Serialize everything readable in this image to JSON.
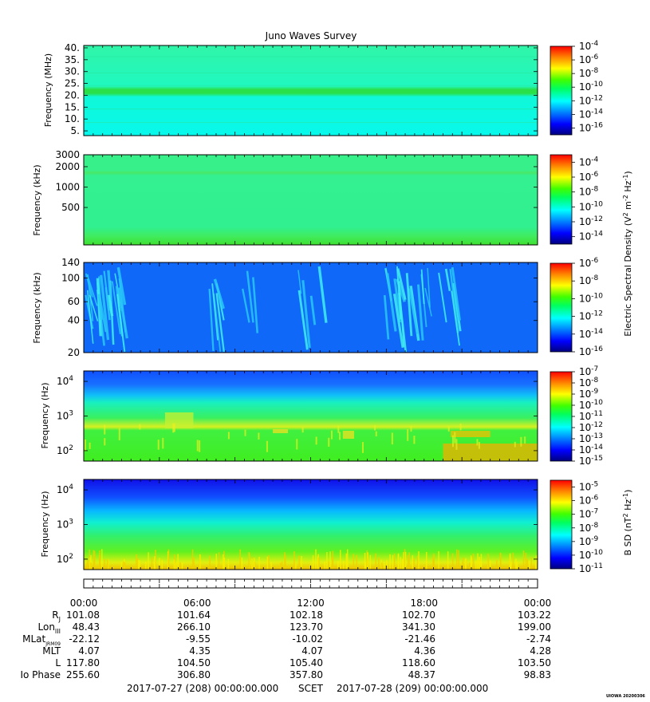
{
  "title": "Juno Waves Survey",
  "watermark": "UIOWA 20200306",
  "panels": [
    {
      "ylabel": "Frequency (MHz)",
      "ticks": [
        {
          "v": 40,
          "label": "40."
        },
        {
          "v": 35,
          "label": "35."
        },
        {
          "v": 30,
          "label": "30."
        },
        {
          "v": 25,
          "label": "25."
        },
        {
          "v": 20,
          "label": "20."
        },
        {
          "v": 15,
          "label": "15."
        },
        {
          "v": 10,
          "label": "10."
        },
        {
          "v": 5,
          "label": "5."
        }
      ],
      "yscale": "linear",
      "ylim": [
        3,
        41
      ],
      "colorbar": {
        "min_exp": -17,
        "max_exp": -4,
        "labels": [
          "-4",
          "-6",
          "-8",
          "-10",
          "-12",
          "-14",
          "-16"
        ]
      }
    },
    {
      "ylabel": "Frequency (kHz)",
      "ticks": [
        {
          "v": 3000,
          "label": "3000"
        },
        {
          "v": 2000,
          "label": "2000"
        },
        {
          "v": 1000,
          "label": "1000"
        },
        {
          "v": 500,
          "label": "500"
        }
      ],
      "yscale": "log",
      "ylim": [
        140,
        3000
      ],
      "colorbar": {
        "min_exp": -15,
        "max_exp": -3,
        "labels": [
          "-4",
          "-6",
          "-8",
          "-10",
          "-12",
          "-14"
        ]
      }
    },
    {
      "ylabel": "Frequency (kHz)",
      "ticks": [
        {
          "v": 140,
          "label": "140"
        },
        {
          "v": 100,
          "label": "100"
        },
        {
          "v": 60,
          "label": "60"
        },
        {
          "v": 40,
          "label": "40"
        },
        {
          "v": 20,
          "label": "20"
        }
      ],
      "yscale": "log",
      "ylim": [
        20,
        140
      ],
      "colorbar": {
        "min_exp": -16,
        "max_exp": -6,
        "labels": [
          "-6",
          "-8",
          "-10",
          "-12",
          "-14",
          "-16"
        ]
      }
    },
    {
      "ylabel": "Frequency (Hz)",
      "ticks": [
        {
          "v": 10000,
          "label": "10",
          "exp": "4"
        },
        {
          "v": 1000,
          "label": "10",
          "exp": "3"
        },
        {
          "v": 100,
          "label": "10",
          "exp": "2"
        }
      ],
      "yscale": "log",
      "ylim": [
        50,
        20000
      ],
      "colorbar": {
        "min_exp": -15,
        "max_exp": -7,
        "labels": [
          "-7",
          "-8",
          "-9",
          "-10",
          "-11",
          "-12",
          "-13",
          "-14",
          "-15"
        ]
      }
    },
    {
      "ylabel": "Frequency (Hz)",
      "ticks": [
        {
          "v": 10000,
          "label": "10",
          "exp": "4"
        },
        {
          "v": 1000,
          "label": "10",
          "exp": "3"
        },
        {
          "v": 100,
          "label": "10",
          "exp": "2"
        }
      ],
      "yscale": "log",
      "ylim": [
        50,
        20000
      ],
      "colorbar": {
        "min_exp": -11,
        "max_exp": -4.5,
        "labels": [
          "-5",
          "-6",
          "-7",
          "-8",
          "-9",
          "-10",
          "-11"
        ]
      }
    }
  ],
  "colorbar_titles": {
    "electric": "Electric Spectral Density (V",
    "magnetic": "B SD (nT"
  },
  "time_axis": {
    "labels": [
      "00:00",
      "06:00",
      "12:00",
      "18:00",
      "00:00"
    ],
    "hours": [
      0,
      6,
      12,
      18,
      24
    ]
  },
  "ephemeris": [
    {
      "name": "R",
      "sub": "J",
      "values": [
        "101.08",
        "101.64",
        "102.18",
        "102.70",
        "103.22"
      ]
    },
    {
      "name": "Lon",
      "sub": "III",
      "values": [
        "48.43",
        "266.10",
        "123.70",
        "341.30",
        "199.00"
      ]
    },
    {
      "name": "MLat",
      "sub": "JRM09",
      "values": [
        "-22.12",
        "-9.55",
        "-10.02",
        "-21.46",
        "-2.74"
      ]
    },
    {
      "name": "MLT",
      "sub": "",
      "values": [
        "4.07",
        "4.35",
        "4.07",
        "4.36",
        "4.28"
      ]
    },
    {
      "name": "L",
      "sub": "",
      "values": [
        "117.80",
        "104.50",
        "105.40",
        "118.60",
        "103.50"
      ]
    },
    {
      "name": "Io Phase",
      "sub": "",
      "values": [
        "255.60",
        "306.80",
        "357.80",
        "48.37",
        "98.83"
      ]
    }
  ],
  "footer": {
    "start": "2017-07-27 (208) 00:00:00.000",
    "scet": "SCET",
    "end": "2017-07-28 (209) 00:00:00.000"
  },
  "chart_data": [
    {
      "type": "heatmap",
      "xlabel": "",
      "ylabel": "Frequency (MHz)",
      "ylim": [
        3,
        41
      ],
      "x_hours": [
        0,
        24
      ],
      "colorscale_exp": [
        -17,
        -4
      ],
      "notes_values": [
        {
          "freq": 21,
          "level_exp": -11
        },
        {
          "freq": "background",
          "level_exp": -13
        }
      ]
    },
    {
      "type": "heatmap",
      "xlabel": "",
      "ylabel": "Frequency (kHz)",
      "ylim": [
        140,
        3000
      ],
      "x_hours": [
        0,
        24
      ],
      "colorscale_exp": [
        -15,
        -3
      ],
      "notes_values": [
        {
          "freq": 1700,
          "level_exp": -10
        },
        {
          "freq": "background",
          "level_exp": -11
        }
      ]
    },
    {
      "type": "heatmap",
      "xlabel": "",
      "ylabel": "Frequency (kHz)",
      "ylim": [
        20,
        140
      ],
      "x_hours": [
        0,
        24
      ],
      "colorscale_exp": [
        -16,
        -6
      ]
    },
    {
      "type": "heatmap",
      "xlabel": "",
      "ylabel": "Frequency (Hz)",
      "ylim": [
        50,
        20000
      ],
      "x_hours": [
        0,
        24
      ],
      "colorscale_exp": [
        -15,
        -7
      ]
    },
    {
      "type": "heatmap",
      "xlabel": "",
      "ylabel": "Frequency (Hz)",
      "ylim": [
        50,
        20000
      ],
      "x_hours": [
        0,
        24
      ],
      "colorscale_exp": [
        -11,
        -4.5
      ]
    }
  ]
}
